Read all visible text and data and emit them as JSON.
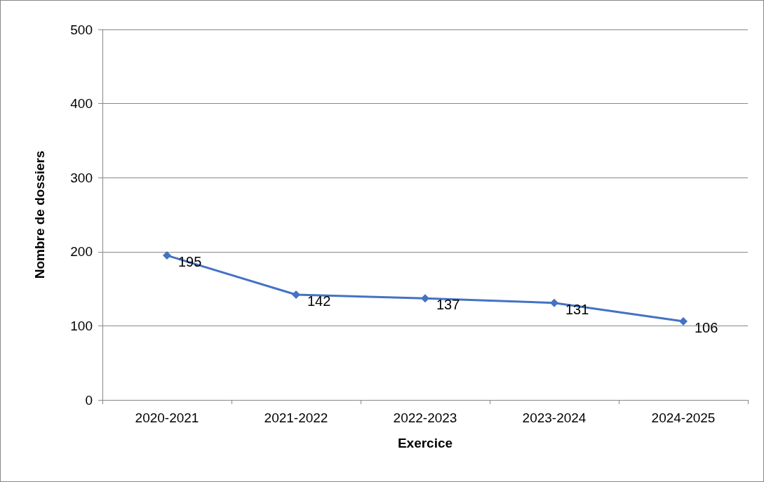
{
  "chart_data": {
    "type": "line",
    "xlabel": "Exercice",
    "ylabel": "Nombre de dossiers",
    "categories": [
      "2020-2021",
      "2021-2022",
      "2022-2023",
      "2023-2024",
      "2024-2025"
    ],
    "series": [
      {
        "color": "#4472c4",
        "values": [
          195,
          142,
          137,
          131,
          106
        ]
      }
    ],
    "ylim": [
      0,
      500
    ],
    "yticks": [
      0,
      100,
      200,
      300,
      400,
      500
    ],
    "grid": "y",
    "marker": "diamond",
    "line_style": "solid",
    "data_labels": true
  }
}
